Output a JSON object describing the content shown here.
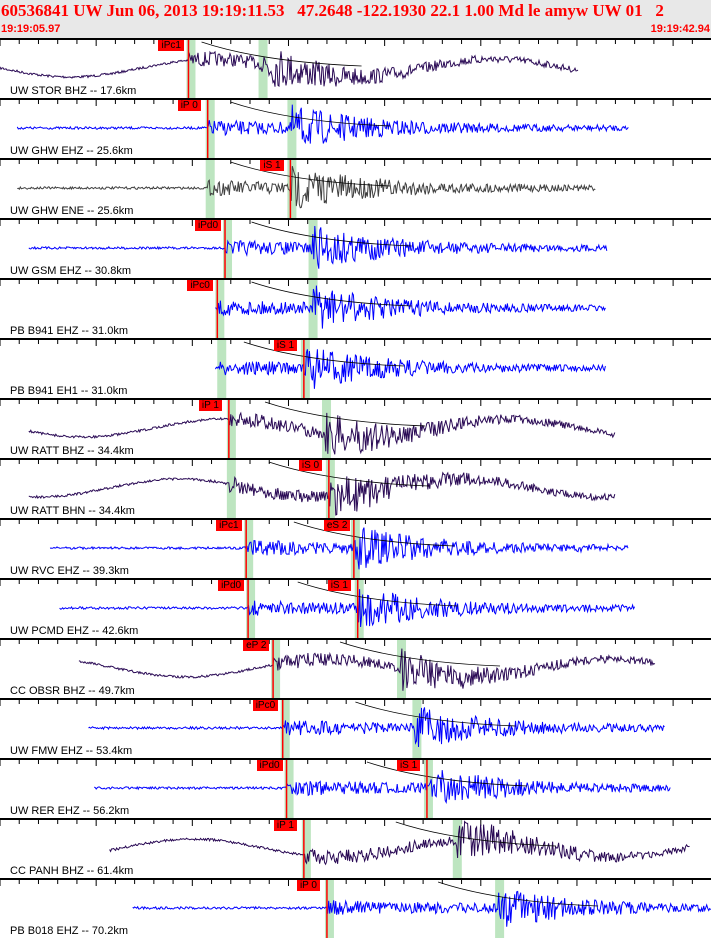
{
  "header": {
    "title": "60536841 UW Jun 06, 2013 19:19:11.53   47.2648 -122.1930 22.1 1.00 Md le amyw UW 01   2",
    "start_time": "19:19:05.97",
    "end_time": "19:19:42.94",
    "window_seconds": 36.97
  },
  "colors": {
    "blue": "#0000ff",
    "purple": "#2a0a55",
    "grey": "#404040",
    "pick": "#ff0000",
    "window": "#bde5c0"
  },
  "traces": [
    {
      "label": "UW STOR BHZ -- 17.6km",
      "color": "purple",
      "lf": true,
      "start": 0,
      "end": 30.1,
      "p": 9.8,
      "s": 13.6,
      "pick": "iPc1",
      "pick_at": "p"
    },
    {
      "label": "UW GHW EHZ -- 25.6km",
      "color": "blue",
      "lf": false,
      "start": 0.9,
      "end": 32.7,
      "p": 10.8,
      "s": 15.1,
      "pick": "iP 0",
      "pick_at": "p"
    },
    {
      "label": "UW GHW ENE -- 25.6km",
      "color": "grey",
      "lf": false,
      "start": 0.9,
      "end": 31.0,
      "p": 10.8,
      "s": 15.1,
      "pick": "iS 1",
      "pick_at": "s"
    },
    {
      "label": "UW GSM EHZ -- 30.8km",
      "color": "blue",
      "lf": false,
      "start": 1.5,
      "end": 31.6,
      "p": 11.7,
      "s": 16.2,
      "pick": "iPd0",
      "pick_at": "p"
    },
    {
      "label": "PB B941 EHZ -- 31.0km",
      "color": "blue",
      "lf": false,
      "start": 11.2,
      "end": 31.5,
      "p": 11.3,
      "s": 16.2,
      "pick": "iPc0",
      "pick_at": "p"
    },
    {
      "label": "PB B941 EH1 -- 31.0km",
      "color": "blue",
      "lf": false,
      "start": 11.2,
      "end": 31.5,
      "p": 11.4,
      "s": 15.8,
      "pick": "iS 1",
      "pick_at": "s"
    },
    {
      "label": "UW RATT BHZ -- 34.4km",
      "color": "purple",
      "lf": true,
      "start": 1.5,
      "end": 32.0,
      "p": 11.9,
      "s": 16.9,
      "pick": "iP 1",
      "pick_at": "p"
    },
    {
      "label": "UW RATT BHN -- 34.4km",
      "color": "purple",
      "lf": true,
      "start": 1.5,
      "end": 32.0,
      "p": 11.9,
      "s": 17.1,
      "pick": "iS 0",
      "pick_at": "s"
    },
    {
      "label": "UW RVC EHZ -- 39.3km",
      "color": "blue",
      "lf": false,
      "start": 2.6,
      "end": 32.7,
      "p": 12.8,
      "s": 18.4,
      "pick": "iPc1",
      "pick2": "eS 2"
    },
    {
      "label": "UW PCMD EHZ -- 42.6km",
      "color": "blue",
      "lf": false,
      "start": 3.1,
      "end": 33.0,
      "p": 12.9,
      "s": 18.6,
      "pick": "iPd0",
      "pick2": "iS 1"
    },
    {
      "label": "CC OBSR BHZ -- 49.7km",
      "color": "purple",
      "lf": true,
      "start": 4.1,
      "end": 34.1,
      "p": 14.2,
      "s": 20.8,
      "pick": "eP 2",
      "pick_at": "p"
    },
    {
      "label": "UW FMW EHZ -- 53.4km",
      "color": "blue",
      "lf": false,
      "start": 4.6,
      "end": 34.6,
      "p": 14.7,
      "s": 21.6,
      "pick": "iPc0",
      "pick_at": "p"
    },
    {
      "label": "UW RER EHZ -- 56.2km",
      "color": "blue",
      "lf": false,
      "start": 4.9,
      "end": 34.9,
      "p": 14.9,
      "s": 22.2,
      "pick": "iPd0",
      "pick2": "iS 1"
    },
    {
      "label": "CC PANH BHZ -- 61.4km",
      "color": "purple",
      "lf": true,
      "start": 5.7,
      "end": 35.9,
      "p": 15.8,
      "s": 23.7,
      "pick": "iP 1",
      "pick_at": "p"
    },
    {
      "label": "PB B018 EHZ -- 70.2km",
      "color": "blue",
      "lf": false,
      "start": 6.9,
      "end": 37.0,
      "p": 17.0,
      "s": 25.9,
      "pick": "iP 0",
      "pick_at": "p"
    }
  ]
}
